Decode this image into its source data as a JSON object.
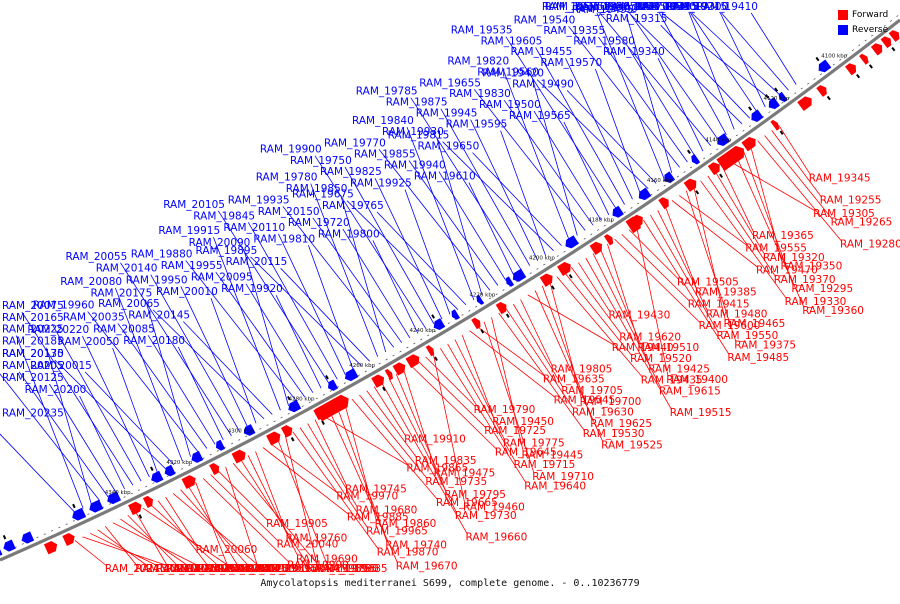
{
  "title": "Amycolatopsis mediterranei S699, complete genome. - 0..10236779",
  "legend": {
    "forward": "Forward",
    "reverse": "Reverse"
  },
  "colors": {
    "forward": "#ff0000",
    "reverse": "#0000ff",
    "axis": "#7a7a7a"
  },
  "ticks": [
    "4100 kbp",
    "4120 kbp",
    "4140 kbp",
    "4160 kbp",
    "4180 kbp",
    "4200 kbp",
    "4220 kbp",
    "4240 kbp",
    "4260 kbp",
    "4280 kbp",
    "4300 kbp",
    "4320 kbp",
    "4340 kbp"
  ],
  "reverse_labels": [
    "RAM_19410",
    "RAM_19300",
    "RAM_19405",
    "RAM_19270",
    "RAM_19215",
    "RAM_19395",
    "RAM_19315",
    "RAM_19590",
    "RAM_19390",
    "RAM_19335",
    "RAM_19585",
    "RAM_19380",
    "RAM_19340",
    "RAM_19580",
    "RAM_19355",
    "RAM_19540",
    "RAM_19495",
    "RAM_19575",
    "RAM_19490",
    "RAM_19420",
    "RAM_19570",
    "RAM_19455",
    "RAM_19605",
    "RAM_19535",
    "RAM_19565",
    "RAM_19500",
    "RAM_19830",
    "RAM_19655",
    "RAM_19560",
    "RAM_19820",
    "RAM_19650",
    "RAM_19815",
    "RAM_19595",
    "RAM_19945",
    "RAM_19875",
    "RAM_19785",
    "RAM_19610",
    "RAM_19940",
    "RAM_19855",
    "RAM_19770",
    "RAM_19930",
    "RAM_19840",
    "RAM_19765",
    "RAM_19675",
    "RAM_19925",
    "RAM_19825",
    "RAM_19750",
    "RAM_19900",
    "RAM_19800",
    "RAM_19720",
    "RAM_20150",
    "RAM_19935",
    "RAM_19850",
    "RAM_19780",
    "RAM_20115",
    "RAM_19895",
    "RAM_19810",
    "RAM_20110",
    "RAM_19845",
    "RAM_20105",
    "RAM_19920",
    "RAM_20095",
    "RAM_19955",
    "RAM_19880",
    "RAM_20090",
    "RAM_19915",
    "RAM_20145",
    "RAM_20065",
    "RAM_20010",
    "RAM_19950",
    "RAM_20140",
    "RAM_20055",
    "RAM_20180",
    "RAM_20085",
    "RAM_20035",
    "RAM_19960",
    "RAM_20175",
    "RAM_20080",
    "RAM_20015",
    "RAM_20135",
    "RAM_20050",
    "RAM_20220",
    "RAM_20165",
    "RAM_20075",
    "RAM_20200",
    "RAM_20125",
    "RAM_20205",
    "RAM_20170",
    "RAM_20185",
    "RAM_20225",
    "RAM_20235"
  ],
  "forward_labels": [
    "RAM_19345",
    "RAM_19255",
    "RAM_19265",
    "RAM_19280",
    "RAM_19350",
    "RAM_19295",
    "RAM_19360",
    "RAM_19305",
    "RAM_19365",
    "RAM_19320",
    "RAM_19370",
    "RAM_19330",
    "RAM_19465",
    "RAM_19375",
    "RAM_19555",
    "RAM_19470",
    "RAM_19385",
    "RAM_19480",
    "RAM_19550",
    "RAM_19485",
    "RAM_19400",
    "RAM_19505",
    "RAM_19415",
    "RAM_19600",
    "RAM_19510",
    "RAM_19425",
    "RAM_19615",
    "RAM_19515",
    "RAM_19430",
    "RAM_19620",
    "RAM_19520",
    "RAM_19435",
    "RAM_19700",
    "RAM_19625",
    "RAM_19525",
    "RAM_19440",
    "RAM_19805",
    "RAM_19705",
    "RAM_19630",
    "RAM_19530",
    "RAM_19445",
    "RAM_19710",
    "RAM_19635",
    "RAM_19545",
    "RAM_19450",
    "RAM_19775",
    "RAM_19715",
    "RAM_19640",
    "RAM_19460",
    "RAM_19790",
    "RAM_19725",
    "RAM_19645",
    "RAM_19475",
    "RAM_19795",
    "RAM_19730",
    "RAM_19660",
    "RAM_19910",
    "RAM_19835",
    "RAM_19735",
    "RAM_19665",
    "RAM_19860",
    "RAM_19740",
    "RAM_19670",
    "RAM_19865",
    "RAM_19745",
    "RAM_19680",
    "RAM_19965",
    "RAM_19870",
    "RAM_19755",
    "RAM_19685",
    "RAM_19970",
    "RAM_19885",
    "RAM_19760",
    "RAM_19690",
    "RAM_19985",
    "RAM_19890",
    "RAM_19695",
    "RAM_19905",
    "RAM_20040",
    "RAM_19990",
    "RAM_20045",
    "RAM_19995",
    "RAM_20000",
    "RAM_20160",
    "RAM_20060",
    "RAM_20005",
    "RAM_20070",
    "RAM_20020",
    "RAM_20100",
    "RAM_20025",
    "RAM_20120",
    "RAM_20030",
    "RAM_20210",
    "RAM_20130",
    "RAM_20215",
    "RAM_20230",
    "RAM_20275"
  ]
}
